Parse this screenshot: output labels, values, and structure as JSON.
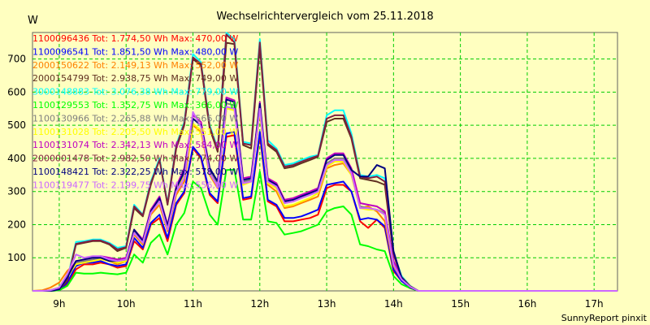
{
  "chart_data": {
    "type": "line",
    "title": "Wechselrichtervergleich vom 25.11.2018",
    "ylabel": "W",
    "credit": "SunnyReport pinxit",
    "xlim": [
      8.6,
      17.35
    ],
    "ylim": [
      0,
      780
    ],
    "xticks": [
      9,
      10,
      11,
      12,
      13,
      14,
      15,
      16,
      17
    ],
    "xtick_labels": [
      "9h",
      "10h",
      "11h",
      "12h",
      "13h",
      "14h",
      "15h",
      "16h",
      "17h"
    ],
    "yticks": [
      100,
      200,
      300,
      400,
      500,
      600,
      700
    ],
    "ytick_labels": [
      "100",
      "200",
      "300",
      "400",
      "500",
      "600",
      "700"
    ],
    "grid": true,
    "legend_position": "top-left",
    "x": [
      8.6,
      8.75,
      8.87,
      9.0,
      9.12,
      9.25,
      9.37,
      9.5,
      9.62,
      9.75,
      9.87,
      10.0,
      10.12,
      10.25,
      10.37,
      10.5,
      10.62,
      10.75,
      10.87,
      11.0,
      11.12,
      11.25,
      11.37,
      11.5,
      11.62,
      11.75,
      11.87,
      12.0,
      12.12,
      12.25,
      12.37,
      12.5,
      12.62,
      12.75,
      12.87,
      13.0,
      13.12,
      13.25,
      13.37,
      13.5,
      13.62,
      13.75,
      13.87,
      14.0,
      14.12,
      14.25,
      14.37,
      14.5,
      14.62,
      14.75,
      14.87,
      15.0,
      15.12,
      15.25,
      15.37,
      15.5,
      15.62,
      15.75,
      15.87,
      16.0,
      16.12,
      16.25,
      16.37,
      16.5,
      16.62,
      16.75,
      16.87,
      17.0,
      17.12,
      17.25,
      17.35
    ],
    "series": [
      {
        "name": "1100096436 Tot: 1.774,50 Wh Max: 470,00 W",
        "color": "#ff0000",
        "values": [
          0,
          0,
          0,
          2,
          20,
          65,
          80,
          80,
          85,
          80,
          70,
          75,
          150,
          125,
          200,
          220,
          150,
          260,
          295,
          430,
          400,
          290,
          265,
          465,
          470,
          275,
          280,
          470,
          270,
          255,
          210,
          210,
          215,
          220,
          230,
          310,
          320,
          320,
          300,
          210,
          190,
          215,
          190,
          60,
          30,
          10,
          0,
          0,
          0,
          0,
          0,
          0,
          0,
          0,
          0,
          0,
          0,
          0,
          0,
          0,
          0,
          0,
          0,
          0,
          0,
          0,
          0,
          0,
          0,
          0,
          0
        ]
      },
      {
        "name": "1100096541 Tot: 1.851,50 Wh Max: 480,00 W",
        "color": "#0000ff",
        "values": [
          0,
          0,
          0,
          2,
          25,
          75,
          85,
          85,
          90,
          80,
          75,
          80,
          160,
          130,
          205,
          230,
          160,
          265,
          300,
          435,
          405,
          295,
          270,
          475,
          480,
          280,
          285,
          480,
          275,
          260,
          220,
          220,
          225,
          235,
          245,
          320,
          325,
          330,
          300,
          215,
          220,
          215,
          195,
          65,
          30,
          10,
          0,
          0,
          0,
          0,
          0,
          0,
          0,
          0,
          0,
          0,
          0,
          0,
          0,
          0,
          0,
          0,
          0,
          0,
          0,
          0,
          0,
          0,
          0,
          0,
          0
        ]
      },
      {
        "name": "2000150622 Tot: 2.149,13 Wh Max: 552,00 W",
        "color": "#ff8000",
        "values": [
          0,
          2,
          10,
          25,
          60,
          85,
          90,
          95,
          100,
          90,
          80,
          90,
          170,
          140,
          230,
          260,
          180,
          290,
          330,
          500,
          480,
          350,
          310,
          550,
          552,
          320,
          330,
          540,
          320,
          300,
          250,
          255,
          265,
          275,
          285,
          370,
          380,
          385,
          350,
          250,
          255,
          240,
          210,
          75,
          35,
          12,
          0,
          0,
          0,
          0,
          0,
          0,
          0,
          0,
          0,
          0,
          0,
          0,
          0,
          0,
          0,
          0,
          0,
          0,
          0,
          0,
          0,
          0,
          0,
          0,
          0
        ]
      },
      {
        "name": "2000154799 Tot: 2.938,75 Wh Max: 749,00 W",
        "color": "#603020",
        "values": [
          0,
          0,
          0,
          5,
          30,
          140,
          145,
          150,
          150,
          140,
          120,
          130,
          250,
          225,
          320,
          400,
          260,
          430,
          500,
          700,
          680,
          490,
          420,
          749,
          745,
          440,
          430,
          740,
          440,
          420,
          370,
          375,
          385,
          395,
          405,
          510,
          520,
          520,
          460,
          340,
          335,
          330,
          320,
          110,
          40,
          12,
          0,
          0,
          0,
          0,
          0,
          0,
          0,
          0,
          0,
          0,
          0,
          0,
          0,
          0,
          0,
          0,
          0,
          0,
          0,
          0,
          0,
          0,
          0,
          0,
          0
        ]
      },
      {
        "name": "3000148883 Tot: 3.076,38 Wh Max: 779,00 W",
        "color": "#00ffff",
        "values": [
          0,
          0,
          0,
          5,
          35,
          148,
          150,
          155,
          155,
          145,
          130,
          135,
          260,
          230,
          330,
          400,
          265,
          440,
          510,
          715,
          690,
          500,
          430,
          779,
          760,
          450,
          445,
          760,
          455,
          430,
          380,
          385,
          395,
          405,
          410,
          530,
          545,
          545,
          475,
          350,
          345,
          350,
          340,
          115,
          45,
          15,
          0,
          0,
          0,
          0,
          0,
          0,
          0,
          0,
          0,
          0,
          0,
          0,
          0,
          0,
          0,
          0,
          0,
          0,
          0,
          0,
          0,
          0,
          0,
          0,
          0
        ]
      },
      {
        "name": "1100129553 Tot: 1.352,75 Wh Max: 366,00 W",
        "color": "#00ff00",
        "values": [
          0,
          0,
          0,
          2,
          15,
          55,
          52,
          52,
          55,
          52,
          50,
          55,
          110,
          85,
          145,
          170,
          110,
          200,
          235,
          330,
          310,
          230,
          200,
          365,
          366,
          215,
          215,
          360,
          210,
          205,
          170,
          175,
          180,
          190,
          200,
          240,
          250,
          255,
          230,
          140,
          135,
          125,
          120,
          45,
          20,
          8,
          0,
          0,
          0,
          0,
          0,
          0,
          0,
          0,
          0,
          0,
          0,
          0,
          0,
          0,
          0,
          0,
          0,
          0,
          0,
          0,
          0,
          0,
          0,
          0,
          0
        ]
      },
      {
        "name": "1100130966 Tot: 2.265,88 Wh Max: 566,00 W",
        "color": "#808080",
        "values": [
          0,
          0,
          2,
          10,
          45,
          85,
          90,
          95,
          100,
          95,
          90,
          95,
          180,
          150,
          240,
          275,
          190,
          305,
          350,
          520,
          500,
          360,
          320,
          566,
          560,
          330,
          335,
          555,
          330,
          315,
          265,
          270,
          280,
          290,
          300,
          385,
          400,
          400,
          360,
          255,
          250,
          245,
          235,
          85,
          38,
          12,
          0,
          0,
          0,
          0,
          0,
          0,
          0,
          0,
          0,
          0,
          0,
          0,
          0,
          0,
          0,
          0,
          0,
          0,
          0,
          0,
          0,
          0,
          0,
          0,
          0
        ]
      },
      {
        "name": "1100131028 Tot: 2.205,50 Wh Max: 551,00 W",
        "color": "#ffff00",
        "values": [
          0,
          0,
          2,
          10,
          42,
          80,
          85,
          90,
          95,
          90,
          85,
          90,
          175,
          145,
          235,
          270,
          185,
          300,
          345,
          505,
          485,
          355,
          315,
          551,
          545,
          320,
          330,
          545,
          325,
          310,
          255,
          260,
          270,
          280,
          295,
          375,
          390,
          390,
          350,
          250,
          245,
          245,
          230,
          80,
          35,
          12,
          0,
          0,
          0,
          0,
          0,
          0,
          0,
          0,
          0,
          0,
          0,
          0,
          0,
          0,
          0,
          0,
          0,
          0,
          0,
          0,
          0,
          0,
          0,
          0,
          0
        ]
      },
      {
        "name": "1100131074 Tot: 2.342,13 Wh Max: 584,00 W",
        "color": "#c000c0",
        "values": [
          0,
          0,
          2,
          10,
          48,
          90,
          95,
          100,
          105,
          100,
          95,
          100,
          185,
          155,
          245,
          285,
          200,
          315,
          370,
          530,
          510,
          370,
          330,
          584,
          575,
          340,
          345,
          570,
          340,
          325,
          275,
          280,
          290,
          300,
          310,
          400,
          415,
          415,
          370,
          265,
          260,
          255,
          240,
          90,
          40,
          12,
          0,
          0,
          0,
          0,
          0,
          0,
          0,
          0,
          0,
          0,
          0,
          0,
          0,
          0,
          0,
          0,
          0,
          0,
          0,
          0,
          0,
          0,
          0,
          0,
          0
        ]
      },
      {
        "name": "2000001478 Tot: 2.982,50 Wh Max: 774,00 W",
        "color": "#802040",
        "values": [
          0,
          0,
          0,
          5,
          32,
          142,
          147,
          152,
          152,
          142,
          125,
          132,
          255,
          228,
          325,
          395,
          262,
          435,
          505,
          705,
          685,
          495,
          425,
          774,
          750,
          445,
          440,
          750,
          445,
          425,
          375,
          380,
          390,
          400,
          408,
          520,
          530,
          530,
          465,
          345,
          340,
          345,
          330,
          112,
          42,
          14,
          0,
          0,
          0,
          0,
          0,
          0,
          0,
          0,
          0,
          0,
          0,
          0,
          0,
          0,
          0,
          0,
          0,
          0,
          0,
          0,
          0,
          0,
          0,
          0,
          0
        ]
      },
      {
        "name": "1100148421 Tot: 2.322,25 Wh Max: 578,00 W",
        "color": "#000080",
        "values": [
          0,
          0,
          0,
          5,
          40,
          90,
          95,
          100,
          100,
          90,
          90,
          95,
          185,
          150,
          240,
          280,
          195,
          310,
          360,
          520,
          500,
          370,
          330,
          578,
          570,
          335,
          340,
          565,
          335,
          320,
          270,
          275,
          285,
          295,
          305,
          395,
          410,
          410,
          365,
          345,
          345,
          380,
          370,
          120,
          40,
          10,
          0,
          0,
          0,
          0,
          0,
          0,
          0,
          0,
          0,
          0,
          0,
          0,
          0,
          0,
          0,
          0,
          0,
          0,
          0,
          0,
          0,
          0,
          0,
          0,
          0
        ]
      },
      {
        "name": "1100119477 Tot: 2.199,75 Wh Max: 556,00 W",
        "color": "#cc66ff",
        "values": [
          0,
          0,
          2,
          10,
          50,
          110,
          100,
          105,
          105,
          95,
          90,
          95,
          175,
          145,
          235,
          270,
          185,
          300,
          340,
          540,
          495,
          355,
          315,
          556,
          550,
          325,
          330,
          550,
          330,
          315,
          265,
          270,
          280,
          290,
          300,
          380,
          395,
          395,
          355,
          250,
          250,
          245,
          230,
          80,
          35,
          12,
          0,
          0,
          0,
          0,
          0,
          0,
          0,
          0,
          0,
          0,
          0,
          0,
          0,
          0,
          0,
          0,
          0,
          0,
          0,
          0,
          0,
          0,
          0,
          0,
          0
        ]
      }
    ]
  }
}
